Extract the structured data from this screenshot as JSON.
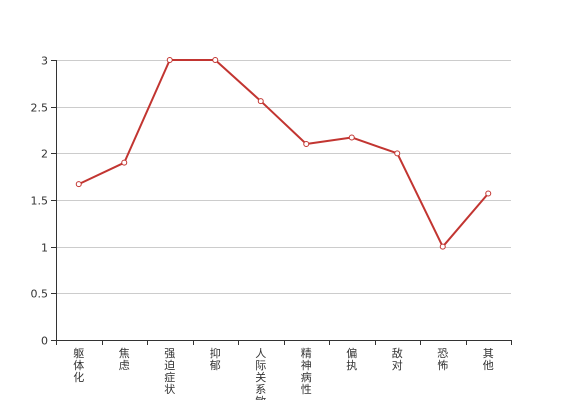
{
  "chart_data": {
    "type": "line",
    "categories": [
      "躯体化",
      "焦虑",
      "强迫症状",
      "抑郁",
      "人际关系敏感",
      "精神病性",
      "偏执",
      "敌对",
      "恐怖",
      "其他"
    ],
    "series": [
      {
        "values": [
          1.67,
          1.9,
          3.0,
          3.0,
          2.56,
          2.1,
          2.17,
          2.0,
          1.0,
          1.57
        ],
        "color": "#c23531"
      }
    ],
    "yticks": [
      "0",
      "0.5",
      "1",
      "1.5",
      "2",
      "2.5",
      "3"
    ],
    "ylim": [
      0,
      3
    ],
    "grid": true,
    "legend": "none"
  }
}
